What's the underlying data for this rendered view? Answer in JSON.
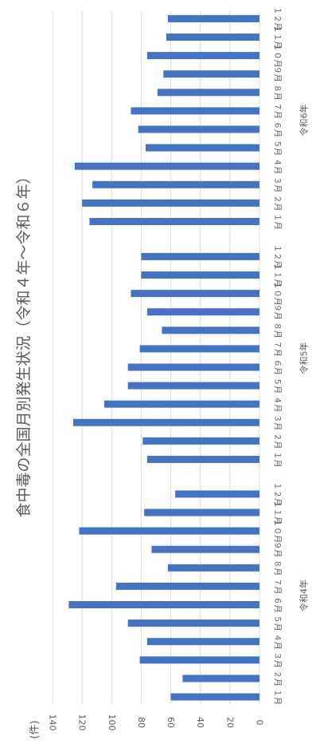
{
  "chart_data": {
    "type": "bar",
    "orientation": "horizontal",
    "title": "食中毒の全国月別発生状況（令和４年〜令和６年）",
    "unit_label": "(件)",
    "xlabel": "",
    "ylabel": "",
    "xlim": [
      0,
      140
    ],
    "x_ticks": [
      0,
      20,
      40,
      60,
      80,
      100,
      120,
      140
    ],
    "grid": true,
    "bar_color": "#4472c4",
    "gridline_color": "#d9d9d9",
    "groups": [
      {
        "name": "令和4年",
        "categories": [
          "１月",
          "２月",
          "３月",
          "４月",
          "５月",
          "６月",
          "７月",
          "８月",
          "９月",
          "１０月",
          "１１月",
          "１２月"
        ],
        "values": [
          60,
          52,
          81,
          76,
          89,
          129,
          97,
          62,
          73,
          122,
          78,
          57
        ]
      },
      {
        "name": "令和5年",
        "categories": [
          "１月",
          "２月",
          "３月",
          "４月",
          "５月",
          "６月",
          "７月",
          "８月",
          "９月",
          "１０月",
          "１１月",
          "１２月"
        ],
        "values": [
          76,
          79,
          126,
          105,
          89,
          89,
          81,
          66,
          76,
          87,
          80,
          80
        ]
      },
      {
        "name": "令和6年",
        "categories": [
          "１月",
          "２月",
          "３月",
          "４月",
          "５月",
          "６月",
          "７月",
          "８月",
          "９月",
          "１０月",
          "１１月",
          "１２月"
        ],
        "values": [
          115,
          120,
          113,
          125,
          77,
          82,
          87,
          69,
          65,
          76,
          63,
          62
        ]
      }
    ]
  }
}
